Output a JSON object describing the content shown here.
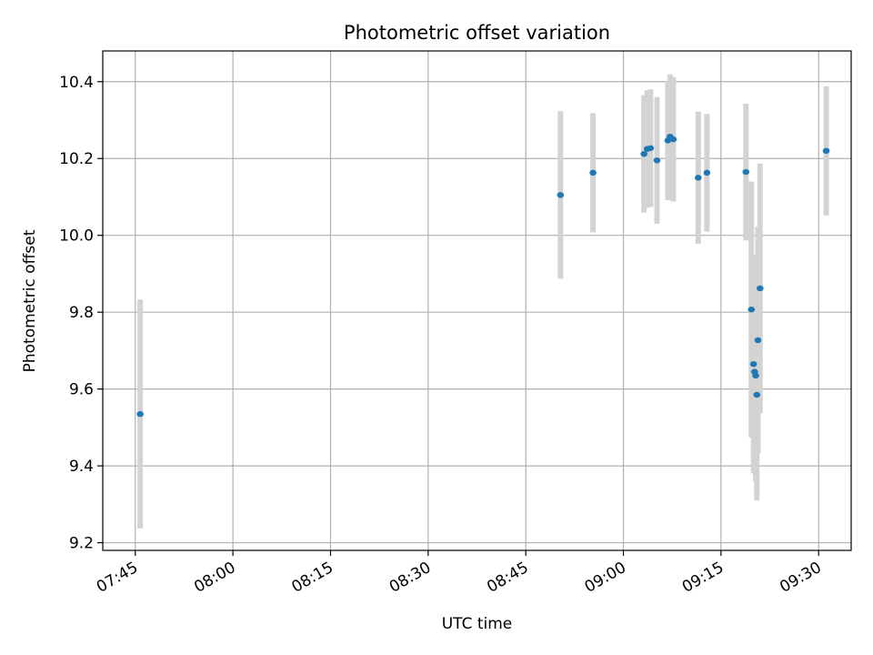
{
  "chart_data": {
    "type": "scatter",
    "title": "Photometric offset variation",
    "xlabel": "UTC time",
    "ylabel": "Photometric offset",
    "x_ticks": [
      "07:45",
      "08:00",
      "08:15",
      "08:30",
      "08:45",
      "09:00",
      "09:15",
      "09:30"
    ],
    "y_ticks": [
      "9.2",
      "9.4",
      "9.6",
      "9.8",
      "10.0",
      "10.2",
      "10.4"
    ],
    "xlim": [
      "07:40",
      "09:35"
    ],
    "ylim": [
      9.18,
      10.48
    ],
    "grid": true,
    "colors": {
      "point": "#1f77b4",
      "errorbar": "#d3d3d3",
      "grid": "#b0b0b0"
    },
    "series": [
      {
        "points": [
          {
            "x": "07:45:45",
            "y": 9.535,
            "yerr": 0.298
          },
          {
            "x": "08:50:20",
            "y": 10.105,
            "yerr": 0.218
          },
          {
            "x": "08:55:20",
            "y": 10.163,
            "yerr": 0.155
          },
          {
            "x": "09:03:10",
            "y": 10.212,
            "yerr": 0.153
          },
          {
            "x": "09:03:40",
            "y": 10.225,
            "yerr": 0.153
          },
          {
            "x": "09:04:10",
            "y": 10.227,
            "yerr": 0.153
          },
          {
            "x": "09:05:10",
            "y": 10.195,
            "yerr": 0.165
          },
          {
            "x": "09:06:50",
            "y": 10.247,
            "yerr": 0.155
          },
          {
            "x": "09:07:10",
            "y": 10.257,
            "yerr": 0.162
          },
          {
            "x": "09:07:40",
            "y": 10.25,
            "yerr": 0.162
          },
          {
            "x": "09:11:30",
            "y": 10.15,
            "yerr": 0.172
          },
          {
            "x": "09:12:50",
            "y": 10.163,
            "yerr": 0.153
          },
          {
            "x": "09:18:50",
            "y": 10.165,
            "yerr": 0.178
          },
          {
            "x": "09:19:40",
            "y": 9.807,
            "yerr": 0.333
          },
          {
            "x": "09:20:00",
            "y": 9.665,
            "yerr": 0.285
          },
          {
            "x": "09:20:10",
            "y": 9.645,
            "yerr": 0.265
          },
          {
            "x": "09:20:20",
            "y": 9.635,
            "yerr": 0.275
          },
          {
            "x": "09:20:30",
            "y": 9.585,
            "yerr": 0.275
          },
          {
            "x": "09:20:40",
            "y": 9.727,
            "yerr": 0.295
          },
          {
            "x": "09:21:00",
            "y": 9.862,
            "yerr": 0.325
          },
          {
            "x": "09:31:10",
            "y": 10.22,
            "yerr": 0.168
          }
        ]
      }
    ]
  }
}
